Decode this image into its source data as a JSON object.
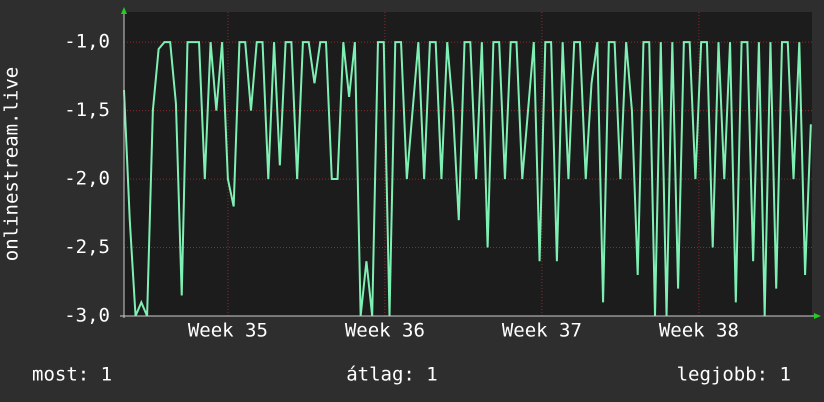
{
  "chart_data": {
    "type": "line",
    "ylabel": "onlinestream.live",
    "x": [
      0,
      0.25,
      0.5,
      0.75,
      1,
      1.25,
      1.5,
      1.75,
      2,
      2.25,
      2.5,
      2.75,
      3,
      3.25,
      3.5,
      3.75,
      4,
      4.25,
      4.5,
      4.75,
      5,
      5.25,
      5.5,
      5.75,
      6,
      6.25,
      6.5,
      6.75,
      7,
      7.25,
      7.5,
      7.75,
      8,
      8.25,
      8.5,
      8.75,
      9,
      9.25,
      9.5,
      9.75,
      10,
      10.25,
      10.5,
      10.75,
      11,
      11.25,
      11.5,
      11.75,
      12,
      12.25,
      12.5,
      12.75,
      13,
      13.25,
      13.5,
      13.75,
      14,
      14.25,
      14.5,
      14.75,
      15,
      15.25,
      15.5,
      15.75,
      16,
      16.25,
      16.5,
      16.75,
      17,
      17.25,
      17.5,
      17.75,
      18,
      18.25,
      18.5,
      18.75,
      19,
      19.25,
      19.5,
      19.75,
      20,
      20.25,
      20.5,
      20.75,
      21,
      21.25,
      21.5,
      21.75,
      22,
      22.25,
      22.5,
      22.75,
      23,
      23.25,
      23.5,
      23.75,
      24,
      24.25,
      24.5,
      24.75,
      25,
      25.25,
      25.5,
      25.75,
      26,
      26.25,
      26.5,
      26.75,
      27,
      27.25,
      27.5,
      27.75,
      28,
      28.25,
      28.5,
      28.75,
      29,
      29.25,
      29.5,
      29.75
    ],
    "series": [
      {
        "name": "onlinestream.live",
        "color": "#7ff0b4",
        "values": [
          -1.35,
          -2.3,
          -3.0,
          -2.9,
          -3.0,
          -1.5,
          -1.05,
          -1.0,
          -1.0,
          -1.45,
          -2.85,
          -1.0,
          -1.0,
          -1.0,
          -2.0,
          -1.0,
          -1.5,
          -1.0,
          -2.0,
          -2.2,
          -1.0,
          -1.0,
          -1.5,
          -1.0,
          -1.0,
          -2.0,
          -1.0,
          -1.9,
          -1.0,
          -1.0,
          -2.0,
          -1.0,
          -1.0,
          -1.3,
          -1.0,
          -1.0,
          -2.0,
          -2.0,
          -1.0,
          -1.4,
          -1.0,
          -3.0,
          -2.6,
          -3.0,
          -1.0,
          -1.0,
          -3.0,
          -1.0,
          -1.0,
          -2.0,
          -1.5,
          -1.0,
          -2.0,
          -1.0,
          -1.0,
          -2.0,
          -1.0,
          -1.5,
          -2.3,
          -1.0,
          -1.0,
          -2.0,
          -1.0,
          -2.5,
          -1.0,
          -1.0,
          -2.0,
          -1.0,
          -1.0,
          -2.0,
          -1.5,
          -1.0,
          -2.6,
          -1.0,
          -1.0,
          -2.6,
          -1.0,
          -2.0,
          -1.0,
          -1.0,
          -2.0,
          -1.3,
          -1.0,
          -2.9,
          -1.0,
          -1.0,
          -2.0,
          -1.0,
          -1.5,
          -2.7,
          -1.0,
          -1.0,
          -3.0,
          -1.0,
          -3.0,
          -1.0,
          -2.8,
          -1.0,
          -1.0,
          -2.0,
          -1.0,
          -1.0,
          -2.5,
          -1.0,
          -2.0,
          -1.0,
          -2.9,
          -1.0,
          -1.0,
          -2.6,
          -1.0,
          -3.0,
          -1.0,
          -2.8,
          -1.0,
          -1.0,
          -2.0,
          -1.0,
          -2.7,
          -1.6
        ]
      }
    ],
    "xlim": [
      0,
      29.8
    ],
    "xticks": [
      {
        "value": 4.5,
        "label": "Week 35"
      },
      {
        "value": 11.3,
        "label": "Week 36"
      },
      {
        "value": 18.1,
        "label": "Week 37"
      },
      {
        "value": 24.9,
        "label": "Week 38"
      }
    ],
    "ylim": [
      -3.0,
      -0.78
    ],
    "yticks": [
      {
        "value": -3.0,
        "label": "-3,0"
      },
      {
        "value": -2.5,
        "label": "-2,5"
      },
      {
        "value": -2.0,
        "label": "-2,0"
      },
      {
        "value": -1.5,
        "label": "-1,5"
      },
      {
        "value": -1.0,
        "label": "-1,0"
      }
    ],
    "grid": true,
    "footer": [
      "most: 1",
      "átlag: 1",
      "legjobb: 1"
    ]
  }
}
